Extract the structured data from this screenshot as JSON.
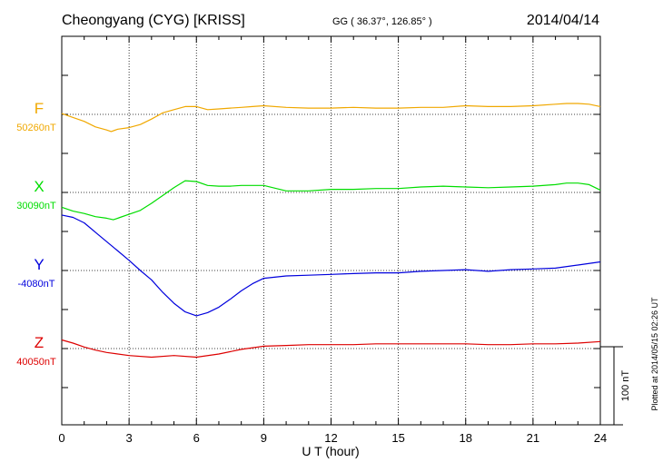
{
  "chart_data": {
    "type": "line",
    "title": "Cheongyang (CYG)  [KRISS]",
    "coords": "GG ( 36.37°, 126.85° )",
    "date": "2014/04/14",
    "xlabel": "U T (hour)",
    "xlim": [
      0,
      24
    ],
    "xticks": [
      "0",
      "3",
      "6",
      "9",
      "12",
      "15",
      "18",
      "21",
      "24"
    ],
    "panel_range_nT": 100,
    "scale_label": "100 nT",
    "plotted_note": "Plotted at 2014/05/15 02:26 UT",
    "series": [
      {
        "name": "F",
        "baseline": "50260nT",
        "baseline_panel": 1,
        "color": "#f0a800",
        "x": [
          0,
          0.5,
          1,
          1.5,
          2,
          2.2,
          2.5,
          3,
          3.5,
          4,
          4.5,
          5,
          5.5,
          6,
          6.5,
          7,
          7.5,
          8,
          8.5,
          9,
          10,
          11,
          12,
          13,
          14,
          15,
          16,
          17,
          18,
          19,
          20,
          21,
          22,
          22.5,
          23,
          23.5,
          24
        ],
        "values": [
          1,
          -4,
          -9,
          -16,
          -20,
          -22,
          -19,
          -17,
          -13,
          -6,
          2,
          6,
          10,
          10,
          6,
          7,
          8,
          9,
          10,
          11,
          9,
          8,
          8,
          9,
          8,
          8,
          9,
          9,
          11,
          10,
          10,
          11,
          13,
          14,
          14,
          13,
          10
        ]
      },
      {
        "name": "X",
        "baseline": "30090nT",
        "baseline_panel": 2,
        "color": "#00dd00",
        "x": [
          0,
          0.5,
          1,
          1.5,
          2,
          2.3,
          2.6,
          3,
          3.5,
          4,
          4.5,
          5,
          5.5,
          6,
          6.5,
          7,
          7.5,
          8,
          8.5,
          9,
          10,
          11,
          12,
          13,
          14,
          15,
          16,
          17,
          18,
          19,
          20,
          21,
          22,
          22.5,
          23,
          23.5,
          24
        ],
        "values": [
          -19,
          -24,
          -27,
          -31,
          -33,
          -35,
          -32,
          -28,
          -23,
          -14,
          -4,
          6,
          15,
          14,
          9,
          8,
          8,
          9,
          9,
          9,
          2,
          2,
          4,
          4,
          5,
          5,
          7,
          8,
          7,
          6,
          7,
          8,
          10,
          12,
          12,
          10,
          3
        ]
      },
      {
        "name": "Y",
        "baseline": "-4080nT",
        "baseline_panel": 3,
        "color": "#0000dd",
        "x": [
          0,
          0.5,
          1,
          1.5,
          2,
          2.5,
          3,
          3.5,
          4,
          4.5,
          5,
          5.5,
          6,
          6.5,
          7,
          7.5,
          8,
          8.5,
          9,
          10,
          11,
          12,
          13,
          14,
          15,
          16,
          17,
          18,
          19,
          20,
          21,
          22,
          23,
          24
        ],
        "values": [
          71,
          68,
          61,
          49,
          37,
          25,
          13,
          0,
          -12,
          -28,
          -42,
          -53,
          -58,
          -54,
          -47,
          -37,
          -26,
          -17,
          -10,
          -7,
          -6,
          -5,
          -4,
          -3,
          -3,
          -1,
          0,
          1,
          -1,
          1,
          2,
          3,
          7,
          11
        ]
      },
      {
        "name": "Z",
        "baseline": "40050nT",
        "baseline_panel": 4,
        "color": "#dd0000",
        "x": [
          0,
          0.5,
          1,
          1.5,
          2,
          3,
          4,
          5,
          6,
          7,
          8,
          9,
          10,
          11,
          12,
          13,
          14,
          15,
          16,
          17,
          18,
          19,
          20,
          21,
          22,
          23,
          24
        ],
        "values": [
          11,
          7,
          2,
          -2,
          -5,
          -9,
          -11,
          -9,
          -11,
          -7,
          -1,
          3,
          4,
          5,
          5,
          5,
          6,
          6,
          6,
          6,
          6,
          5,
          5,
          6,
          6,
          7,
          9
        ]
      }
    ]
  }
}
